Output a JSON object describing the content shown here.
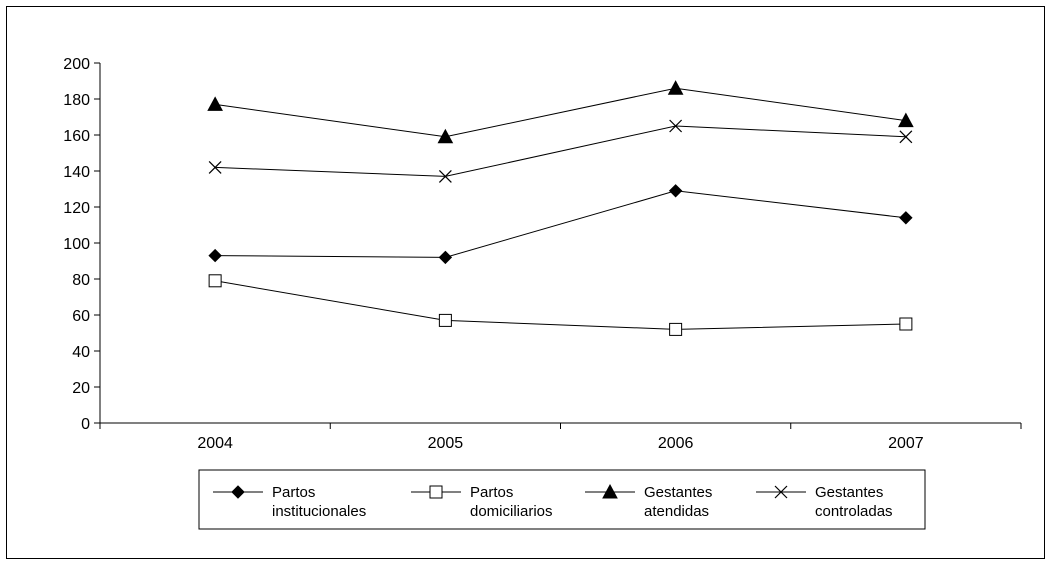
{
  "chart_data": {
    "type": "line",
    "title": "",
    "xlabel": "",
    "ylabel": "",
    "categories": [
      "2004",
      "2005",
      "2006",
      "2007"
    ],
    "ylim": [
      0,
      200
    ],
    "yticks": [
      "0",
      "20",
      "40",
      "60",
      "80",
      "100",
      "120",
      "140",
      "160",
      "180",
      "200"
    ],
    "grid": false,
    "legend_position": "bottom",
    "series": [
      {
        "name": "Partos institucionales",
        "name_lines": [
          "Partos",
          "institucionales"
        ],
        "marker": "diamond",
        "values": [
          93,
          92,
          129,
          114
        ]
      },
      {
        "name": "Partos domiciliarios",
        "name_lines": [
          "Partos",
          "domiciliarios"
        ],
        "marker": "square-open",
        "values": [
          79,
          57,
          52,
          55
        ]
      },
      {
        "name": "Gestantes atendidas",
        "name_lines": [
          "Gestantes",
          "atendidas"
        ],
        "marker": "triangle",
        "values": [
          177,
          159,
          186,
          168
        ]
      },
      {
        "name": "Gestantes controladas",
        "name_lines": [
          "Gestantes",
          "controladas"
        ],
        "marker": "x",
        "values": [
          142,
          137,
          165,
          159
        ]
      }
    ]
  }
}
